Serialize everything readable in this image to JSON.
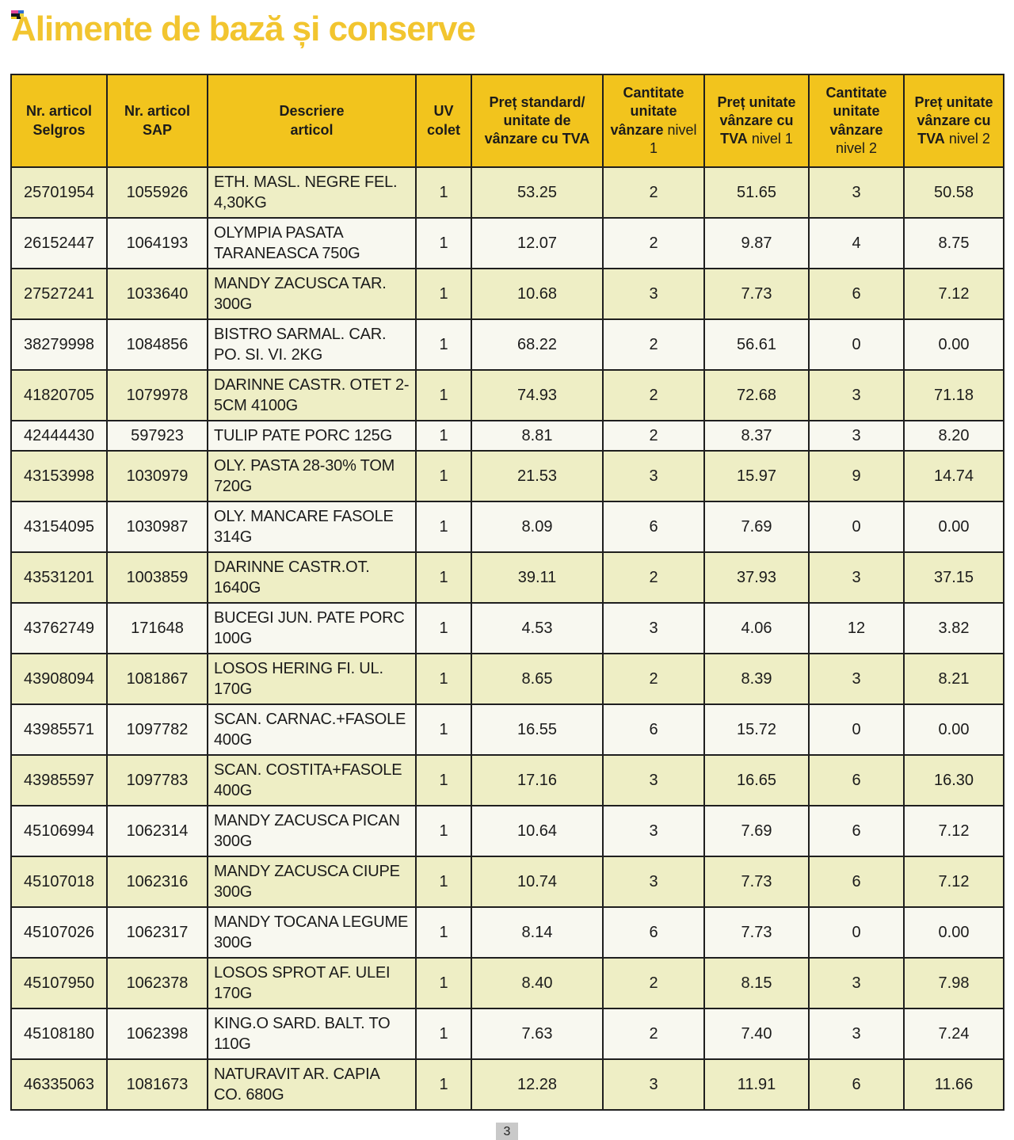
{
  "page": {
    "title": "Alimente de bază și conserve",
    "page_number": "3",
    "colors": {
      "title_color": "#F2C52F",
      "header_bg": "#F2C41D",
      "row_odd_bg": "#EEEEC5",
      "row_even_bg": "#F8F8F0",
      "border_color": "#1F1F1F",
      "text_color": "#1B1B1B",
      "badge_bg": "#C9C9C9"
    }
  },
  "table": {
    "headers": [
      {
        "text": "Nr. articol Selgros"
      },
      {
        "text": "Nr. articol SAP"
      },
      {
        "text": "Descriere articol"
      },
      {
        "text": "UV colet"
      },
      {
        "text": "Preț standard/ unitate de vânzare cu TVA"
      },
      {
        "text": "Cantitate unitate vânzare",
        "suffix": " nivel 1"
      },
      {
        "text": "Preț unitate vânzare cu TVA",
        "suffix": " nivel 1"
      },
      {
        "text": "Cantitate unitate vânzare",
        "suffix": " nivel 2"
      },
      {
        "text": "Preț unitate vânzare cu TVA",
        "suffix": " nivel 2"
      }
    ],
    "col_names": [
      "cell-nr-articol-selgros",
      "cell-nr-articol-sap",
      "cell-descriere-articol",
      "cell-uv-colet",
      "cell-pret-standard-tva",
      "cell-cantitate-nivel-1",
      "cell-pret-tva-nivel-1",
      "cell-cantitate-nivel-2",
      "cell-pret-tva-nivel-2"
    ],
    "rows": [
      [
        "25701954",
        "1055926",
        "ETH. MASL. NEGRE FEL. 4,30KG",
        "1",
        "53.25",
        "2",
        "51.65",
        "3",
        "50.58"
      ],
      [
        "26152447",
        "1064193",
        "OLYMPIA PASATA TARANEASCA 750G",
        "1",
        "12.07",
        "2",
        "9.87",
        "4",
        "8.75"
      ],
      [
        "27527241",
        "1033640",
        "MANDY ZACUSCA TAR. 300G",
        "1",
        "10.68",
        "3",
        "7.73",
        "6",
        "7.12"
      ],
      [
        "38279998",
        "1084856",
        "BISTRO SARMAL. CAR. PO. SI. VI. 2KG",
        "1",
        "68.22",
        "2",
        "56.61",
        "0",
        "0.00"
      ],
      [
        "41820705",
        "1079978",
        "DARINNE CASTR. OTET 2-5CM 4100G",
        "1",
        "74.93",
        "2",
        "72.68",
        "3",
        "71.18"
      ],
      [
        "42444430",
        "597923",
        "TULIP PATE PORC 125G",
        "1",
        "8.81",
        "2",
        "8.37",
        "3",
        "8.20"
      ],
      [
        "43153998",
        "1030979",
        "OLY. PASTA 28-30% TOM 720G",
        "1",
        "21.53",
        "3",
        "15.97",
        "9",
        "14.74"
      ],
      [
        "43154095",
        "1030987",
        "OLY. MANCARE FASOLE 314G",
        "1",
        "8.09",
        "6",
        "7.69",
        "0",
        "0.00"
      ],
      [
        "43531201",
        "1003859",
        "DARINNE CASTR.OT. 1640G",
        "1",
        "39.11",
        "2",
        "37.93",
        "3",
        "37.15"
      ],
      [
        "43762749",
        "171648",
        "BUCEGI JUN. PATE PORC 100G",
        "1",
        "4.53",
        "3",
        "4.06",
        "12",
        "3.82"
      ],
      [
        "43908094",
        "1081867",
        "LOSOS HERING FI. UL. 170G",
        "1",
        "8.65",
        "2",
        "8.39",
        "3",
        "8.21"
      ],
      [
        "43985571",
        "1097782",
        "SCAN. CARNAC.+FASOLE 400G",
        "1",
        "16.55",
        "6",
        "15.72",
        "0",
        "0.00"
      ],
      [
        "43985597",
        "1097783",
        "SCAN. COSTITA+FASOLE 400G",
        "1",
        "17.16",
        "3",
        "16.65",
        "6",
        "16.30"
      ],
      [
        "45106994",
        "1062314",
        "MANDY ZACUSCA PICAN 300G",
        "1",
        "10.64",
        "3",
        "7.69",
        "6",
        "7.12"
      ],
      [
        "45107018",
        "1062316",
        "MANDY ZACUSCA CIUPE 300G",
        "1",
        "10.74",
        "3",
        "7.73",
        "6",
        "7.12"
      ],
      [
        "45107026",
        "1062317",
        "MANDY TOCANA LEGUME 300G",
        "1",
        "8.14",
        "6",
        "7.73",
        "0",
        "0.00"
      ],
      [
        "45107950",
        "1062378",
        "LOSOS SPROT AF. ULEI 170G",
        "1",
        "8.40",
        "2",
        "8.15",
        "3",
        "7.98"
      ],
      [
        "45108180",
        "1062398",
        "KING.O SARD. BALT. TO 110G",
        "1",
        "7.63",
        "2",
        "7.40",
        "3",
        "7.24"
      ],
      [
        "46335063",
        "1081673",
        "NATURAVIT AR. CAPIA CO. 680G",
        "1",
        "12.28",
        "3",
        "11.91",
        "6",
        "11.66"
      ]
    ]
  }
}
